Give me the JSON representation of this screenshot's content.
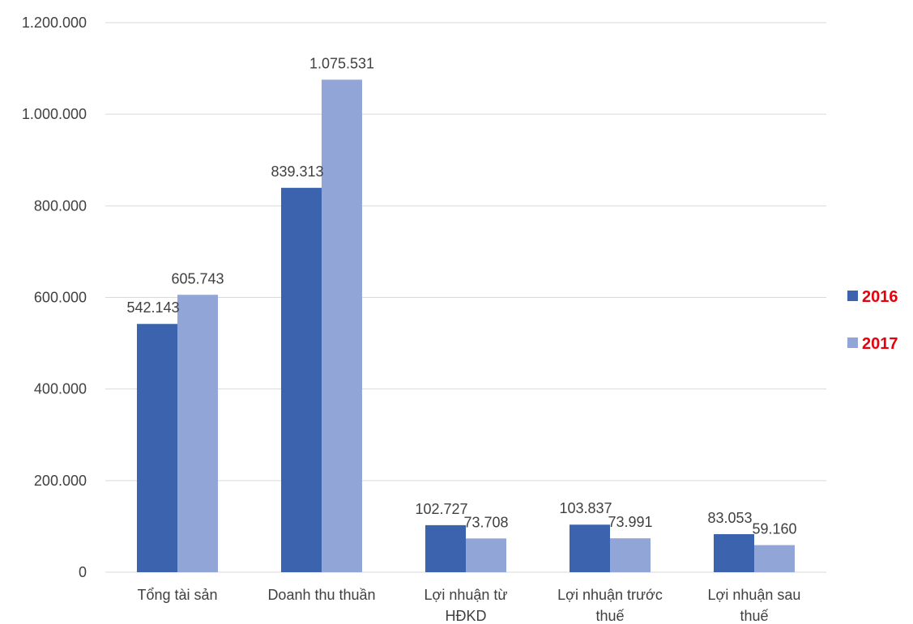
{
  "chart_data": {
    "type": "bar",
    "title": "",
    "xlabel": "",
    "ylabel": "",
    "categories": [
      [
        "Tổng tài sản"
      ],
      [
        "Doanh thu thuần"
      ],
      [
        "Lợi nhuận từ",
        "HĐKD"
      ],
      [
        "Lợi nhuận trước",
        "thuế"
      ],
      [
        "Lợi nhuận sau",
        "thuế"
      ]
    ],
    "series": [
      {
        "name": "2016",
        "color": "#3c63ad",
        "values": [
          542143,
          839313,
          102727,
          103837,
          83053
        ],
        "labels": [
          "542.143",
          "839.313",
          "102.727",
          "103.837",
          "83.053"
        ]
      },
      {
        "name": "2017",
        "color": "#91a6d6",
        "values": [
          605743,
          1075531,
          73708,
          73991,
          59160
        ],
        "labels": [
          "605.743",
          "1.075.531",
          "73.708",
          "73.991",
          "59.160"
        ]
      }
    ],
    "ylim": [
      0,
      1200000
    ],
    "yticks": [
      0,
      200000,
      400000,
      600000,
      800000,
      1000000,
      1200000
    ],
    "ytick_labels": [
      "0",
      "200.000",
      "400.000",
      "600.000",
      "800.000",
      "1.000.000",
      "1.200.000"
    ],
    "grid": true,
    "legend_position": "right",
    "legend_text_color": "#e8000b",
    "gridline_color": "#d9d9d9"
  }
}
